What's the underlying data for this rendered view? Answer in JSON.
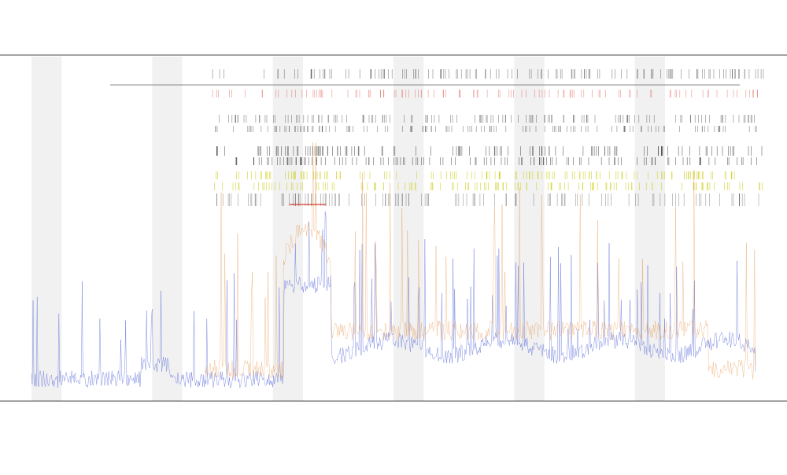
{
  "chart_data": {
    "type": "line",
    "title": "",
    "subtitle_1": "",
    "subtitle_2": "",
    "xlabel": "",
    "ylabel": "",
    "legend": {
      "placement": "top-left",
      "entries": []
    },
    "grid": false,
    "background_bands": true,
    "series": [
      {
        "name": "",
        "color": "#4a5cd6",
        "description_shape": "dense noisy trace with baseline near low values, a broad hump in the middle-left, and high-frequency spikes throughout"
      },
      {
        "name": "",
        "color": "#e07b1d",
        "description_shape": "spiky orange overlay concentrated around the left-middle region with a broad hump"
      },
      {
        "name": "",
        "color": "#c8c800",
        "description_shape": "yellow horizontal event band in upper section"
      },
      {
        "name": "",
        "color": "#d93a2f",
        "description_shape": "red event markers and a short horizontal segment in upper-left-middle area"
      }
    ],
    "x_tick_count": 150,
    "x_ticks_visible": true,
    "ylim": [
      0,
      1
    ],
    "xlim": [
      0,
      1
    ],
    "vertical_marker_rows": 8
  },
  "colors": {
    "axis": "#444444",
    "band": "#f1f1f1",
    "blue": "#4a5cd6",
    "orange": "#e07b1d",
    "yellow": "#c8c800",
    "red": "#d93a2f",
    "black": "#222222",
    "gray_line": "#888888"
  }
}
